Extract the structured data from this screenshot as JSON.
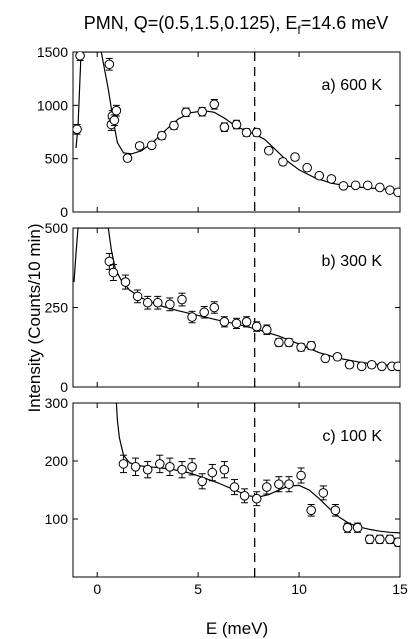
{
  "figure": {
    "title_main": "PMN, Q=(0.5,1.5,0.125), E",
    "title_sub": "f",
    "title_tail": "=14.6 meV",
    "ylabel": "Intensity (Counts/10 min)",
    "xlabel": "E (meV)",
    "dashed_line_x": 7.8
  },
  "chart_data": [
    {
      "type": "scatter",
      "label": "a) 600 K",
      "xlim": [
        -1.2,
        15
      ],
      "ylim": [
        0,
        1500
      ],
      "xticks": [
        0,
        5,
        10,
        15
      ],
      "yticks": [
        0,
        500,
        1000,
        1500
      ],
      "ytick_labels": [
        "0",
        "500",
        "1000",
        "1500"
      ],
      "x": [
        -1.0,
        -0.85,
        0.6,
        0.7,
        0.75,
        0.85,
        0.95,
        1.5,
        2.1,
        2.7,
        3.2,
        3.8,
        4.4,
        5.2,
        5.8,
        6.3,
        6.9,
        7.4,
        7.9,
        8.5,
        9.2,
        9.8,
        10.4,
        11.0,
        11.6,
        12.2,
        12.8,
        13.4,
        14.0,
        14.5,
        14.9
      ],
      "y": [
        775,
        1465,
        1385,
        820,
        900,
        860,
        950,
        505,
        620,
        625,
        715,
        810,
        935,
        940,
        1010,
        795,
        820,
        745,
        745,
        575,
        470,
        515,
        415,
        340,
        310,
        245,
        250,
        250,
        230,
        205,
        185
      ],
      "err": [
        45,
        45,
        55,
        55,
        50,
        50,
        50,
        30,
        30,
        30,
        35,
        35,
        40,
        40,
        45,
        40,
        40,
        35,
        35,
        30,
        30,
        30,
        25,
        25,
        20,
        20,
        20,
        20,
        20,
        20,
        20
      ],
      "fit_x": [
        -1.05,
        -0.95,
        -0.9,
        -0.8,
        -0.6,
        0.2,
        0.55,
        0.8,
        1.0,
        1.3,
        1.7,
        2.2,
        2.8,
        3.4,
        4.0,
        4.6,
        5.3,
        5.8,
        6.3,
        6.8,
        7.3,
        7.8,
        8.3,
        8.8,
        9.4,
        10.0,
        10.8,
        11.6,
        12.5,
        13.5,
        14.5,
        15.0
      ],
      "fit_y": [
        600,
        800,
        1050,
        1500,
        1500,
        1500,
        1150,
        850,
        650,
        555,
        545,
        575,
        660,
        770,
        870,
        930,
        950,
        935,
        880,
        815,
        765,
        730,
        680,
        590,
        480,
        395,
        320,
        270,
        240,
        225,
        212,
        210
      ]
    },
    {
      "type": "scatter",
      "label": "b) 300 K",
      "xlim": [
        -1.2,
        15
      ],
      "ylim": [
        0,
        500
      ],
      "xticks": [
        0,
        5,
        10,
        15
      ],
      "yticks": [
        0,
        250,
        500
      ],
      "ytick_labels": [
        "0",
        "250",
        "500"
      ],
      "x": [
        0.6,
        0.8,
        1.4,
        2.0,
        2.5,
        3.0,
        3.6,
        4.2,
        4.7,
        5.3,
        5.8,
        6.3,
        6.9,
        7.4,
        7.9,
        8.4,
        9.0,
        9.5,
        10.1,
        10.6,
        11.3,
        11.9,
        12.5,
        13.1,
        13.6,
        14.1,
        14.6,
        14.9
      ],
      "y": [
        395,
        360,
        330,
        285,
        265,
        265,
        260,
        275,
        220,
        235,
        250,
        205,
        200,
        205,
        190,
        180,
        140,
        140,
        125,
        130,
        90,
        95,
        70,
        65,
        70,
        65,
        65,
        65
      ],
      "err": [
        25,
        25,
        22,
        20,
        20,
        20,
        20,
        20,
        18,
        18,
        18,
        16,
        16,
        16,
        15,
        15,
        12,
        12,
        12,
        12,
        10,
        10,
        10,
        9,
        9,
        9,
        9,
        9
      ],
      "fit_x": [
        -1.15,
        -1.05,
        -0.95,
        0.55,
        0.7,
        0.9,
        1.2,
        1.6,
        2.2,
        3.0,
        4.0,
        5.0,
        6.0,
        7.0,
        8.0,
        9.0,
        10.0,
        11.0,
        12.0,
        13.0,
        14.0,
        15.0
      ],
      "fit_y": [
        330,
        420,
        500,
        500,
        430,
        370,
        335,
        305,
        280,
        258,
        240,
        225,
        210,
        197,
        180,
        160,
        135,
        108,
        90,
        78,
        70,
        66
      ]
    },
    {
      "type": "scatter",
      "label": "c) 100 K",
      "xlim": [
        -1.2,
        15
      ],
      "ylim": [
        0,
        300
      ],
      "xticks": [
        0,
        5,
        10,
        15
      ],
      "xtick_labels": [
        "0",
        "5",
        "10",
        "15"
      ],
      "yticks": [
        100,
        200,
        300
      ],
      "ytick_labels": [
        "100",
        "200",
        "300"
      ],
      "x": [
        1.3,
        1.9,
        2.5,
        3.1,
        3.6,
        4.2,
        4.7,
        5.2,
        5.7,
        6.3,
        6.8,
        7.3,
        7.9,
        8.4,
        9.0,
        9.5,
        10.1,
        10.6,
        11.2,
        11.8,
        12.4,
        12.9,
        13.5,
        14.0,
        14.5,
        14.9
      ],
      "y": [
        195,
        190,
        185,
        195,
        190,
        185,
        190,
        165,
        180,
        185,
        155,
        140,
        135,
        155,
        160,
        160,
        175,
        115,
        145,
        115,
        85,
        85,
        65,
        65,
        65,
        60
      ],
      "err": [
        15,
        15,
        14,
        15,
        15,
        14,
        14,
        13,
        14,
        14,
        13,
        12,
        12,
        12,
        13,
        13,
        13,
        10,
        12,
        10,
        8,
        8,
        7,
        7,
        7,
        7
      ],
      "fit_x": [
        0.95,
        1.0,
        1.1,
        1.3,
        1.6,
        2.0,
        2.6,
        3.2,
        3.8,
        4.5,
        5.2,
        6.0,
        6.8,
        7.5,
        8.0,
        8.5,
        9.0,
        9.5,
        10.0,
        10.5,
        11.0,
        11.5,
        12.0,
        12.5,
        13.0,
        13.5,
        14.0,
        14.5,
        15.0
      ],
      "fit_y": [
        300,
        270,
        240,
        210,
        197,
        192,
        190,
        188,
        185,
        180,
        172,
        162,
        150,
        140,
        138,
        142,
        150,
        157,
        158,
        150,
        135,
        118,
        103,
        92,
        86,
        82,
        79,
        77,
        76
      ]
    }
  ]
}
